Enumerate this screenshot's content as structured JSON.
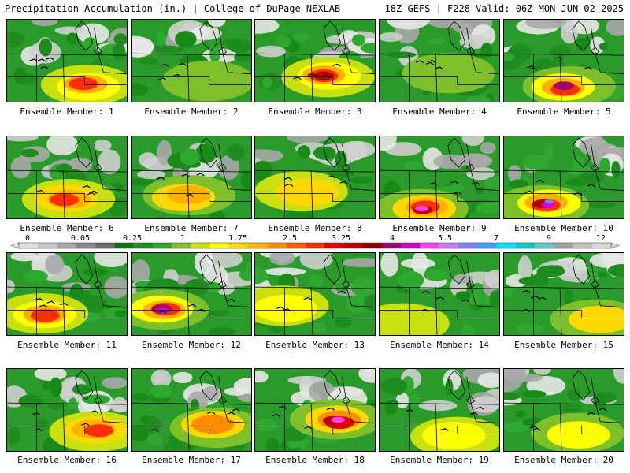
{
  "header": {
    "left_title": "Precipitation Accumulation (in.) | College of DuPage NEXLAB",
    "right_title": "18Z GEFS | F228 Valid: 06Z MON JUN 02 2025"
  },
  "panels": [
    {
      "label": "Ensemble Member: 1",
      "max_class": 5
    },
    {
      "label": "Ensemble Member: 2",
      "max_class": 2
    },
    {
      "label": "Ensemble Member: 3",
      "max_class": 6
    },
    {
      "label": "Ensemble Member: 4",
      "max_class": 2
    },
    {
      "label": "Ensemble Member: 5",
      "max_class": 6
    },
    {
      "label": "Ensemble Member: 6",
      "max_class": 5
    },
    {
      "label": "Ensemble Member: 7",
      "max_class": 4
    },
    {
      "label": "Ensemble Member: 8",
      "max_class": 3
    },
    {
      "label": "Ensemble Member: 9",
      "max_class": 7
    },
    {
      "label": "Ensemble Member: 10",
      "max_class": 8
    },
    {
      "label": "Ensemble Member: 11",
      "max_class": 5
    },
    {
      "label": "Ensemble Member: 12",
      "max_class": 7
    },
    {
      "label": "Ensemble Member: 13",
      "max_class": 3
    },
    {
      "label": "Ensemble Member: 14",
      "max_class": 2
    },
    {
      "label": "Ensemble Member: 15",
      "max_class": 3
    },
    {
      "label": "Ensemble Member: 16",
      "max_class": 5
    },
    {
      "label": "Ensemble Member: 17",
      "max_class": 4
    },
    {
      "label": "Ensemble Member: 18",
      "max_class": 7
    },
    {
      "label": "Ensemble Member: 19",
      "max_class": 3
    },
    {
      "label": "Ensemble Member: 20",
      "max_class": 3
    }
  ],
  "legend": {
    "labels": [
      "0",
      "0.05",
      "0.25",
      "1",
      "1.75",
      "2.5",
      "3.25",
      "4",
      "5.5",
      "7",
      "9",
      "12"
    ],
    "colors": [
      "#dedede",
      "#c4c4c4",
      "#a6a6a6",
      "#8a8a8a",
      "#6f6f6f",
      "#147014",
      "#1e8c1e",
      "#2ea82e",
      "#7ec02a",
      "#c8e010",
      "#ffff00",
      "#ffd800",
      "#ffb000",
      "#ff8c00",
      "#ff6000",
      "#ff3000",
      "#e00000",
      "#b80000",
      "#8c0000",
      "#a00070",
      "#d000d0",
      "#ff40ff",
      "#c080ff",
      "#8080ff",
      "#40a0ff",
      "#00e0ff",
      "#00c8c8",
      "#60c8c8",
      "#a0a0a0",
      "#c0c0c0",
      "#d8d8d8"
    ]
  }
}
